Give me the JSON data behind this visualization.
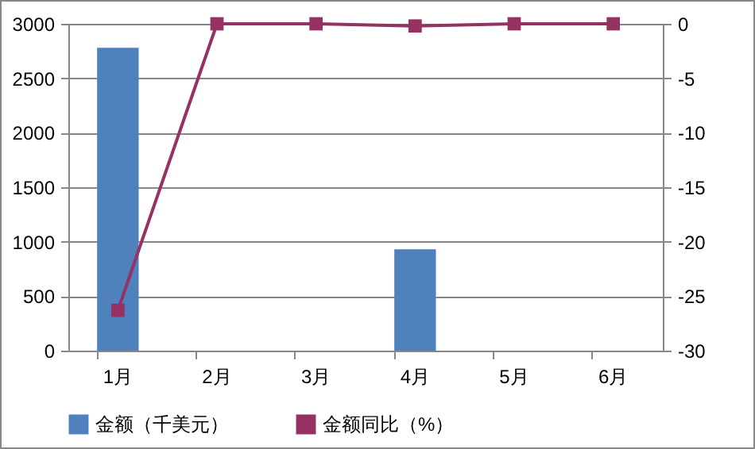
{
  "chart_data": {
    "type": "bar",
    "categories": [
      "1月",
      "2月",
      "3月",
      "4月",
      "5月",
      "6月"
    ],
    "series": [
      {
        "name": "金额（千美元）",
        "color": "#4f81bd",
        "values": [
          2780,
          null,
          null,
          930,
          null,
          null
        ]
      },
      {
        "name": "金额同比（%）",
        "type": "line",
        "axis": "y2",
        "color": "#953163",
        "values": [
          -26.3,
          0,
          0,
          -0.2,
          0,
          0
        ]
      }
    ],
    "ylim": [
      0,
      3000
    ],
    "yticks": [
      0,
      500,
      {
        "value": 1000,
        "label": "1000"
      },
      {
        "value": 1500,
        "label": "1500"
      },
      {
        "value": 2000,
        "label": "2000"
      },
      {
        "value": 2500,
        "label": "2500"
      },
      {
        "value": 3000,
        "label": "3000"
      }
    ],
    "y2lim": [
      -30,
      0
    ],
    "y2ticks": [
      -30,
      -25,
      -20,
      -15,
      -10,
      -5,
      0
    ],
    "grid": "y",
    "legend": "bottom",
    "marker": "square",
    "line_style": "solid"
  }
}
